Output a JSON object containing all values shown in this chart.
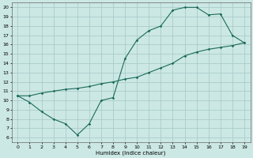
{
  "xlabel": "Humidex (Indice chaleur)",
  "background_color": "#cce8e4",
  "grid_color": "#aaccca",
  "line_color": "#1a6b5a",
  "xlim": [
    -0.5,
    19.5
  ],
  "ylim": [
    5.5,
    20.5
  ],
  "xticks": [
    0,
    1,
    2,
    3,
    4,
    5,
    6,
    7,
    8,
    9,
    10,
    11,
    12,
    13,
    14,
    15,
    16,
    17,
    18,
    19
  ],
  "yticks": [
    6,
    7,
    8,
    9,
    10,
    11,
    12,
    13,
    14,
    15,
    16,
    17,
    18,
    19,
    20
  ],
  "curve1_x": [
    0,
    1,
    2,
    3,
    4,
    5,
    6,
    7,
    8,
    9,
    10,
    11,
    12,
    13,
    14,
    15,
    16,
    17,
    18,
    19
  ],
  "curve1_y": [
    10.5,
    9.8,
    8.8,
    8.0,
    7.5,
    6.3,
    7.5,
    10.0,
    10.3,
    14.5,
    16.5,
    17.5,
    18.0,
    19.7,
    20.0,
    20.0,
    19.2,
    19.3,
    17.0,
    16.2
  ],
  "curve2_x": [
    0,
    1,
    2,
    3,
    4,
    5,
    6,
    7,
    8,
    9,
    10,
    11,
    12,
    13,
    14,
    15,
    16,
    17,
    18,
    19
  ],
  "curve2_y": [
    10.5,
    10.5,
    10.8,
    11.0,
    11.2,
    11.3,
    11.5,
    11.8,
    12.0,
    12.3,
    12.5,
    13.0,
    13.5,
    14.0,
    14.8,
    15.2,
    15.5,
    15.7,
    15.9,
    16.2
  ]
}
